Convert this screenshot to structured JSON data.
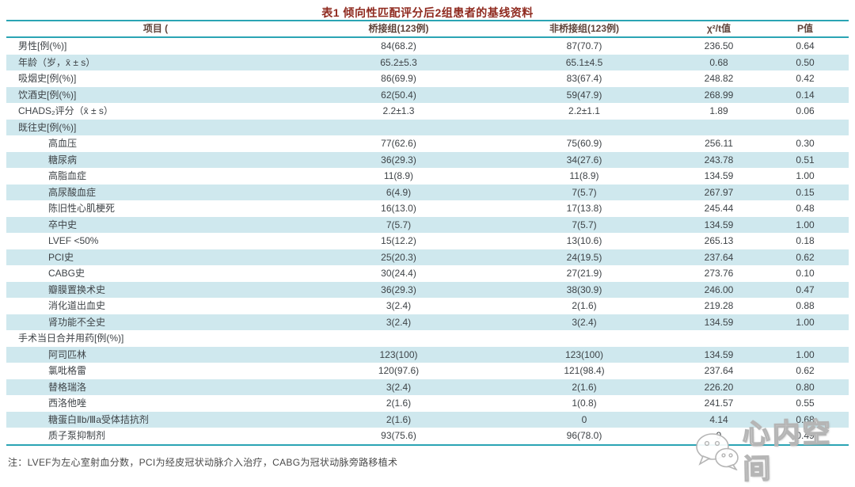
{
  "title": "表1  倾向性匹配评分后2组患者的基线资料",
  "table": {
    "columns": [
      "项目 (",
      "桥接组(123例)",
      "非桥接组(123例)",
      "χ²/t值",
      "P值"
    ],
    "rows": [
      {
        "label": "男性[例(%)]",
        "indent": 0,
        "g1": "84(68.2)",
        "g2": "87(70.7)",
        "chi": "236.50",
        "p": "0.64"
      },
      {
        "label": "年龄（岁，x̄ ± s）",
        "indent": 0,
        "g1": "65.2±5.3",
        "g2": "65.1±4.5",
        "chi": "0.68",
        "p": "0.50"
      },
      {
        "label": "吸烟史[例(%)]",
        "indent": 0,
        "g1": "86(69.9)",
        "g2": "83(67.4)",
        "chi": "248.82",
        "p": "0.42"
      },
      {
        "label": "饮酒史[例(%)]",
        "indent": 0,
        "g1": "62(50.4)",
        "g2": "59(47.9)",
        "chi": "268.99",
        "p": "0.14"
      },
      {
        "label": "CHADS₂评分（x̄ ± s）",
        "indent": 0,
        "g1": "2.2±1.3",
        "g2": "2.2±1.1",
        "chi": "1.89",
        "p": "0.06"
      },
      {
        "label": "既往史[例(%)]",
        "indent": 0,
        "g1": "",
        "g2": "",
        "chi": "",
        "p": ""
      },
      {
        "label": "高血压",
        "indent": 1,
        "g1": "77(62.6)",
        "g2": "75(60.9)",
        "chi": "256.11",
        "p": "0.30"
      },
      {
        "label": "糖尿病",
        "indent": 1,
        "g1": "36(29.3)",
        "g2": "34(27.6)",
        "chi": "243.78",
        "p": "0.51"
      },
      {
        "label": "高脂血症",
        "indent": 1,
        "g1": "11(8.9)",
        "g2": "11(8.9)",
        "chi": "134.59",
        "p": "1.00"
      },
      {
        "label": "高尿酸血症",
        "indent": 1,
        "g1": "6(4.9)",
        "g2": "7(5.7)",
        "chi": "267.97",
        "p": "0.15"
      },
      {
        "label": "陈旧性心肌梗死",
        "indent": 1,
        "g1": "16(13.0)",
        "g2": "17(13.8)",
        "chi": "245.44",
        "p": "0.48"
      },
      {
        "label": "卒中史",
        "indent": 1,
        "g1": "7(5.7)",
        "g2": "7(5.7)",
        "chi": "134.59",
        "p": "1.00"
      },
      {
        "label": "LVEF <50%",
        "indent": 1,
        "g1": "15(12.2)",
        "g2": "13(10.6)",
        "chi": "265.13",
        "p": "0.18"
      },
      {
        "label": "PCI史",
        "indent": 1,
        "g1": "25(20.3)",
        "g2": "24(19.5)",
        "chi": "237.64",
        "p": "0.62"
      },
      {
        "label": "CABG史",
        "indent": 1,
        "g1": "30(24.4)",
        "g2": "27(21.9)",
        "chi": "273.76",
        "p": "0.10"
      },
      {
        "label": "瓣膜置换术史",
        "indent": 1,
        "g1": "36(29.3)",
        "g2": "38(30.9)",
        "chi": "246.00",
        "p": "0.47"
      },
      {
        "label": "消化道出血史",
        "indent": 1,
        "g1": "3(2.4)",
        "g2": "2(1.6)",
        "chi": "219.28",
        "p": "0.88"
      },
      {
        "label": "肾功能不全史",
        "indent": 1,
        "g1": "3(2.4)",
        "g2": "3(2.4)",
        "chi": "134.59",
        "p": "1.00"
      },
      {
        "label": "手术当日合并用药[例(%)]",
        "indent": 0,
        "g1": "",
        "g2": "",
        "chi": "",
        "p": ""
      },
      {
        "label": "阿司匹林",
        "indent": 1,
        "g1": "123(100)",
        "g2": "123(100)",
        "chi": "134.59",
        "p": "1.00"
      },
      {
        "label": "氯吡格雷",
        "indent": 1,
        "g1": "120(97.6)",
        "g2": "121(98.4)",
        "chi": "237.64",
        "p": "0.62"
      },
      {
        "label": "替格瑞洛",
        "indent": 1,
        "g1": "3(2.4)",
        "g2": "2(1.6)",
        "chi": "226.20",
        "p": "0.80"
      },
      {
        "label": "西洛他唑",
        "indent": 1,
        "g1": "2(1.6)",
        "g2": "1(0.8)",
        "chi": "241.57",
        "p": "0.55"
      },
      {
        "label": "糖蛋白Ⅱb/Ⅲa受体拮抗剂",
        "indent": 1,
        "g1": "2(1.6)",
        "g2": "0",
        "chi": "4.14",
        "p": "0.68"
      },
      {
        "label": "质子泵抑制剂",
        "indent": 1,
        "g1": "93(75.6)",
        "g2": "96(78.0)",
        "chi": "9",
        "p": "0.49"
      }
    ]
  },
  "footnote": "注：LVEF为左心室射血分数，PCI为经皮冠状动脉介入治疗，CABG为冠状动脉旁路移植术",
  "watermark": {
    "icon": "wechat-icon",
    "text": "心内空间"
  },
  "colors": {
    "accent_teal": "#2ba4b4",
    "stripe_blue": "#cfe8ee",
    "title_red": "#8f2a1f",
    "header_brown": "#5f4339",
    "body_text": "#3e4347"
  }
}
